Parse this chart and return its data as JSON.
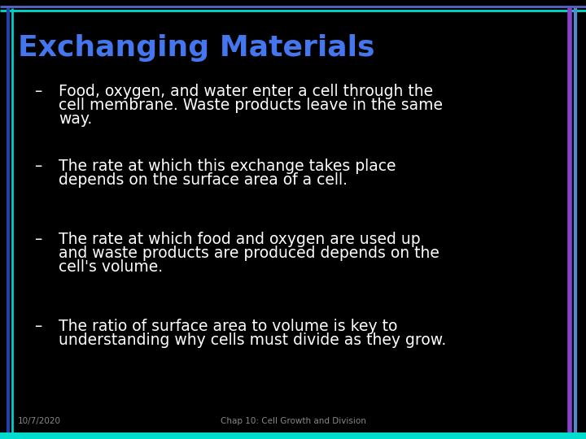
{
  "background_color": "#000000",
  "top_line1_color": "#5566cc",
  "top_line2_color": "#00ddcc",
  "left_line1_color": "#2244aa",
  "left_line2_color": "#00cccc",
  "right_line1_color": "#8844cc",
  "right_line2_color": "#5588cc",
  "bottom_bar_color": "#00ddcc",
  "title": "Exchanging Materials",
  "title_color": "#4477ee",
  "title_fontsize": 26,
  "title_bold": true,
  "bullet_color": "#ffffff",
  "bullet_fontsize": 13.5,
  "dash_color": "#ffffff",
  "bullet1_dash": "–",
  "bullet1_line1": "Food, oxygen, and water enter a cell through the",
  "bullet1_line2": "cell membrane. Waste products leave in the same",
  "bullet1_line3": "way.",
  "bullet2_dash": "–",
  "bullet2_line1": "The rate at which this exchange takes place",
  "bullet2_line2": "depends on the surface area of a cell.",
  "bullet3_dash": "–",
  "bullet3_line1": "The rate at which food and oxygen are used up",
  "bullet3_line2": "and waste products are produced depends on the",
  "bullet3_line3": "cell's volume.",
  "bullet4_dash": "–",
  "bullet4_line1": "The ratio of surface area to volume is key to",
  "bullet4_line2": "understanding why cells must divide as they grow.",
  "footer_left": "10/7/2020",
  "footer_center": "Chap 10: Cell Growth and Division",
  "footer_color": "#888888",
  "footer_fontsize": 7.5
}
